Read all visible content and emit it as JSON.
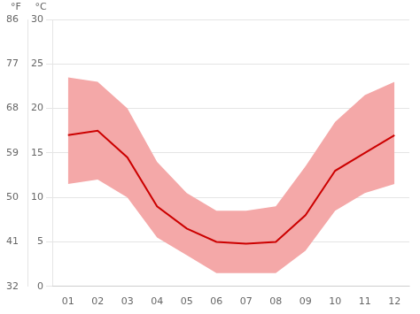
{
  "chart_data": {
    "type": "line",
    "categories": [
      "01",
      "02",
      "03",
      "04",
      "05",
      "06",
      "07",
      "08",
      "09",
      "10",
      "11",
      "12"
    ],
    "series": [
      {
        "type": "band",
        "color": "#f4a8a8",
        "low": [
          11.5,
          12.0,
          10.0,
          5.5,
          3.5,
          1.5,
          1.5,
          1.5,
          4.0,
          8.5,
          10.5,
          11.5
        ],
        "high": [
          23.5,
          23.0,
          20.0,
          14.0,
          10.5,
          8.5,
          8.5,
          9.0,
          13.5,
          18.5,
          21.5,
          23.0
        ]
      },
      {
        "type": "line",
        "color": "#cc0000",
        "values": [
          17.0,
          17.5,
          14.5,
          9.0,
          6.5,
          5.0,
          4.8,
          5.0,
          8.0,
          13.0,
          15.0,
          17.0
        ]
      }
    ],
    "ylim": [
      0,
      30
    ],
    "yticks": [
      0,
      5,
      10,
      15,
      20,
      25,
      30
    ],
    "ylabel": "°C",
    "y2lim": [
      32,
      86
    ],
    "y2ticks": [
      32,
      41,
      50,
      59,
      68,
      77,
      86
    ],
    "y2label": "°F",
    "grid": "y"
  }
}
